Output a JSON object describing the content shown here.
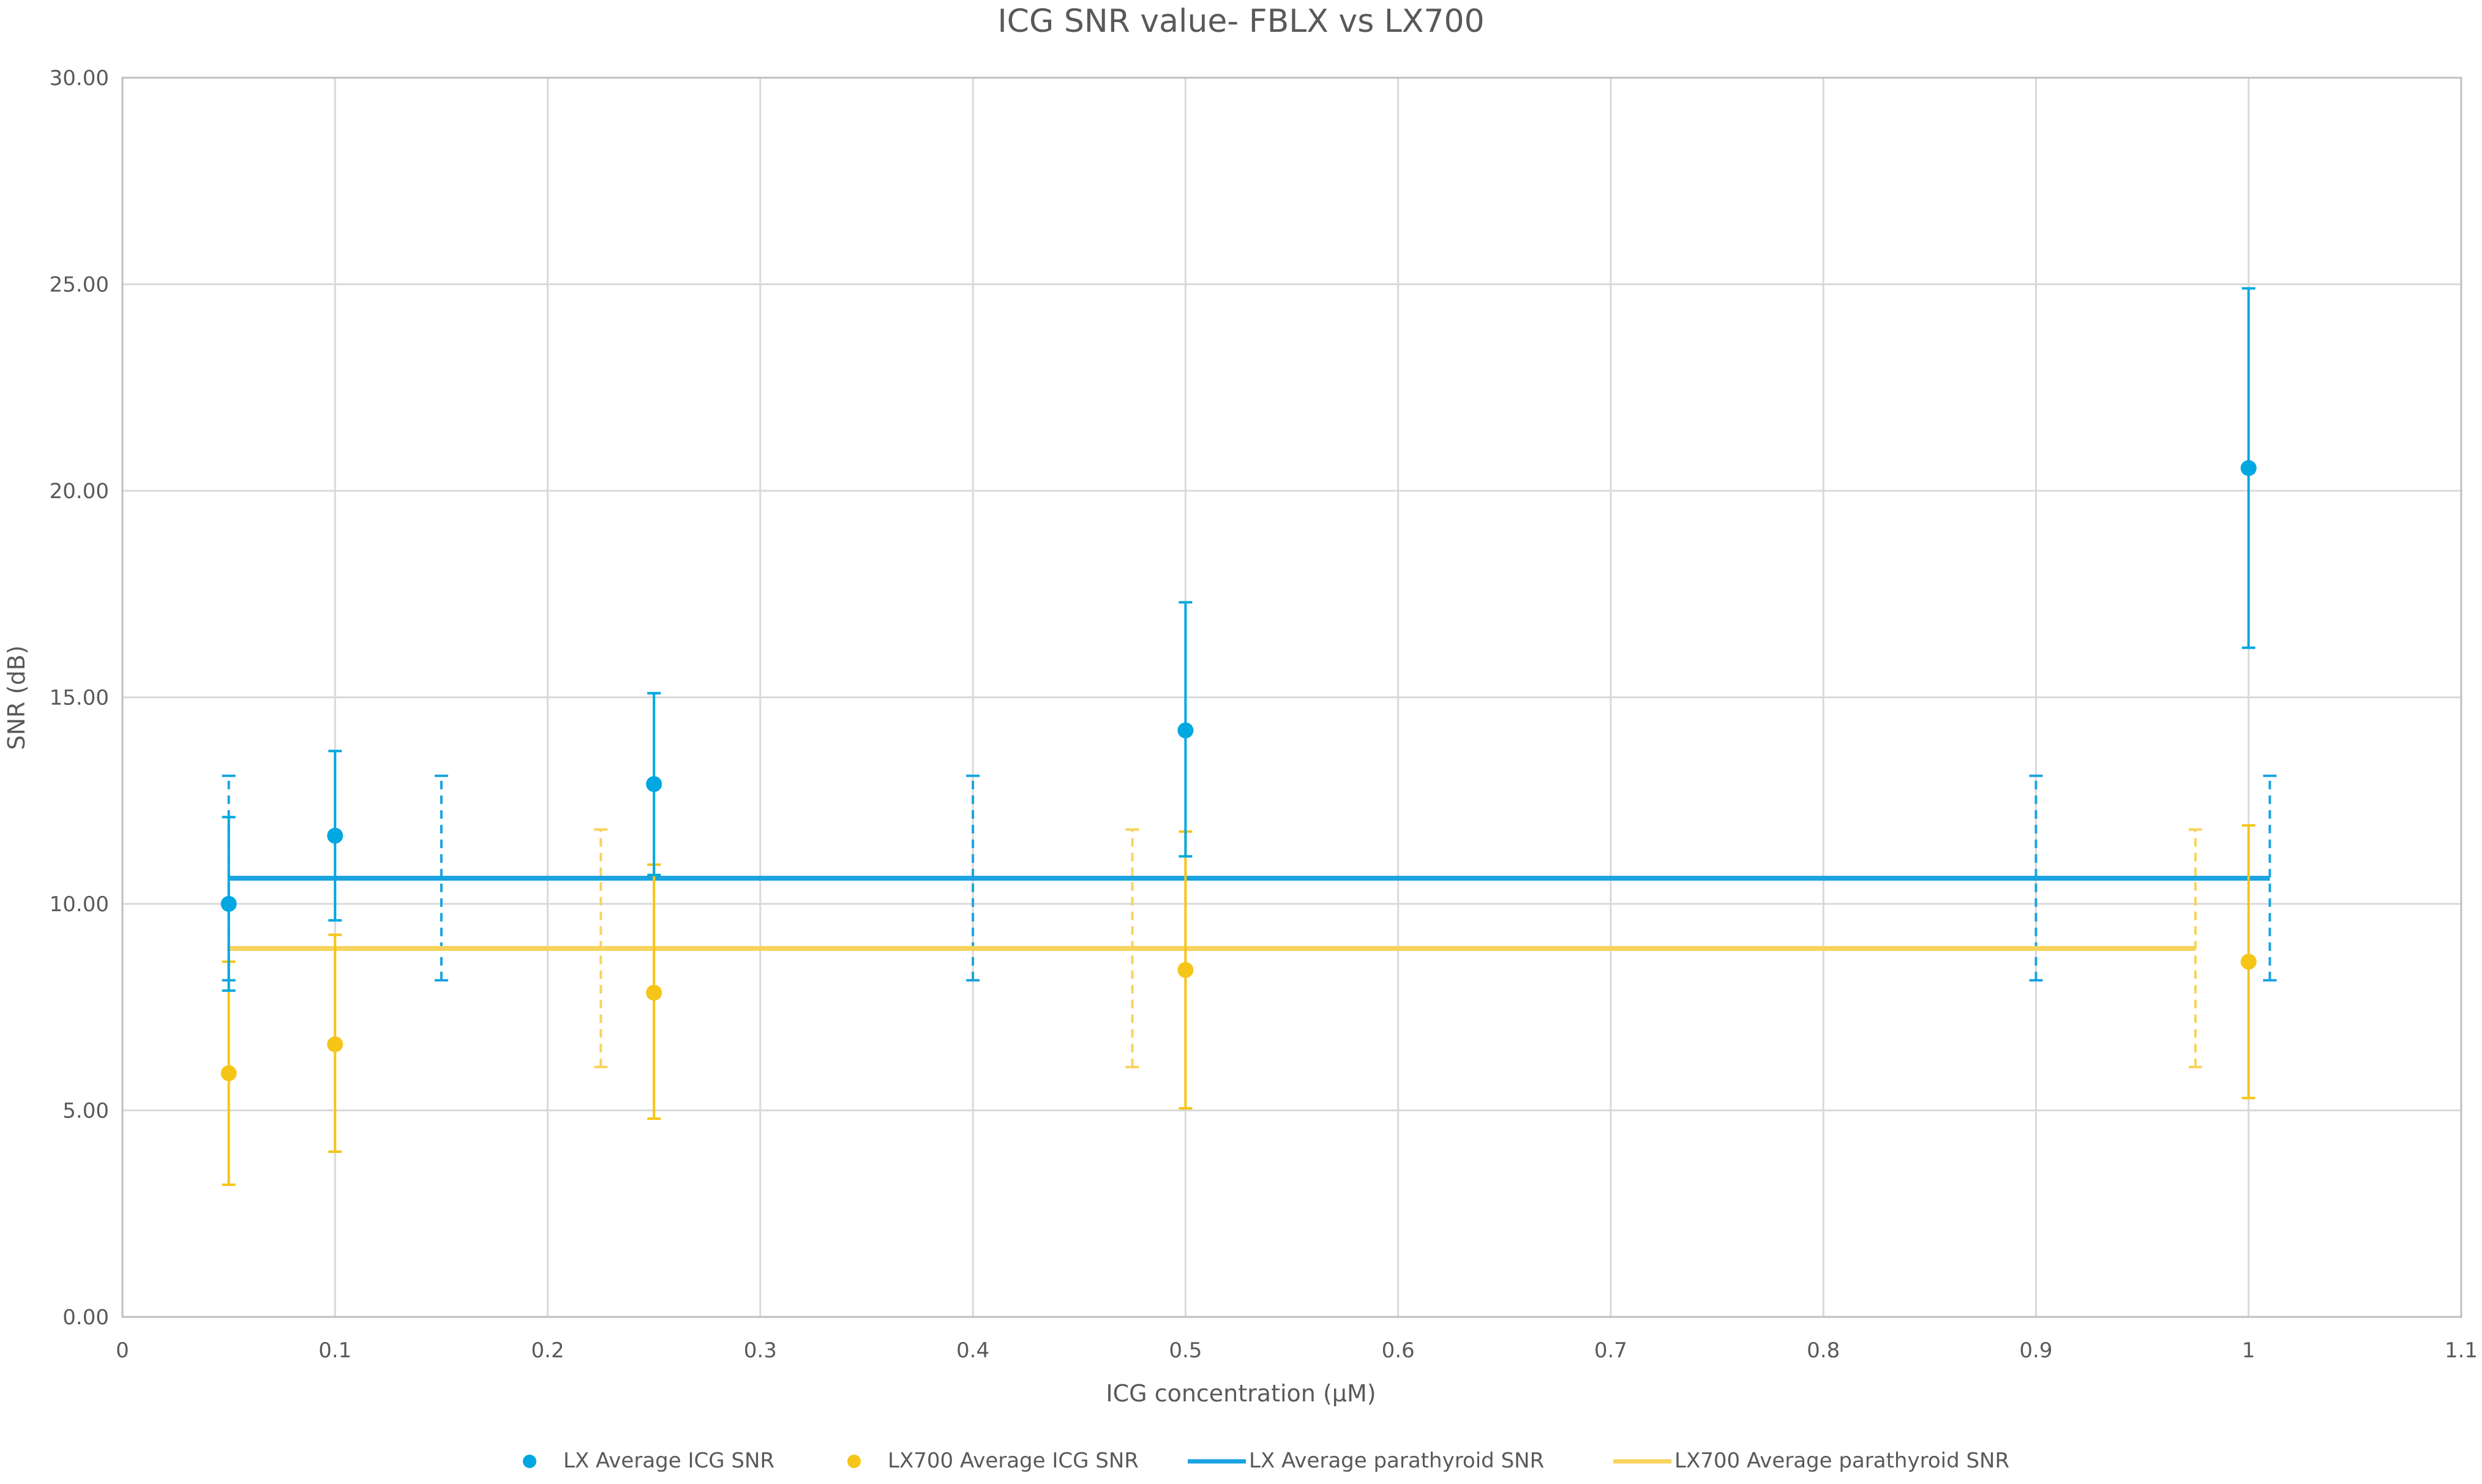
{
  "chart_data": {
    "type": "scatter",
    "title": "ICG SNR value- FBLX vs LX700",
    "xlabel": "ICG concentration (µM)",
    "ylabel": "SNR (dB)",
    "xlim": [
      0,
      1.1
    ],
    "ylim": [
      0,
      30
    ],
    "x_ticks": [
      0,
      0.1,
      0.2,
      0.3,
      0.4,
      0.5,
      0.6,
      0.7,
      0.8,
      0.9,
      1,
      1.1
    ],
    "x_tick_labels": [
      "0",
      "0.1",
      "0.2",
      "0.3",
      "0.4",
      "0.5",
      "0.6",
      "0.7",
      "0.8",
      "0.9",
      "1",
      "1.1"
    ],
    "y_ticks": [
      0,
      5,
      10,
      15,
      20,
      25,
      30
    ],
    "y_tick_labels": [
      "0.00",
      "5.00",
      "10.00",
      "15.00",
      "20.00",
      "25.00",
      "30.00"
    ],
    "grid": true,
    "legend_position": "bottom",
    "series": [
      {
        "name": "LX Average ICG SNR",
        "kind": "points",
        "color": "#00a7e1",
        "x": [
          0.05,
          0.1,
          0.25,
          0.5,
          1.0
        ],
        "y": [
          10.0,
          11.65,
          12.9,
          14.2,
          20.55
        ],
        "err_low": [
          7.9,
          9.6,
          10.7,
          11.15,
          16.2
        ],
        "err_high": [
          12.1,
          13.7,
          15.1,
          17.3,
          24.9
        ]
      },
      {
        "name": "LX700 Average ICG SNR",
        "kind": "points",
        "color": "#f5c518",
        "x": [
          0.05,
          0.1,
          0.25,
          0.5,
          1.0
        ],
        "y": [
          5.9,
          6.6,
          7.85,
          8.4,
          8.6
        ],
        "err_low": [
          3.2,
          4.0,
          4.8,
          5.05,
          5.3
        ],
        "err_high": [
          8.6,
          9.25,
          10.95,
          11.75,
          11.9
        ]
      },
      {
        "name": "LX Average parathyroid SNR",
        "kind": "line",
        "color": "#1aa3e0",
        "x": [
          0.05,
          1.01
        ],
        "y": [
          10.62,
          10.62
        ],
        "err_x": [
          0.05,
          0.15,
          0.4,
          0.9,
          1.01
        ],
        "err_low": 8.15,
        "err_high": 13.1
      },
      {
        "name": "LX700 Average parathyroid SNR",
        "kind": "line",
        "color": "#f7d35c",
        "x": [
          0.05,
          0.975
        ],
        "y": [
          8.92,
          8.92
        ],
        "err_x": [
          0.225,
          0.475,
          0.975
        ],
        "err_low": 6.05,
        "err_high": 11.8
      }
    ]
  }
}
